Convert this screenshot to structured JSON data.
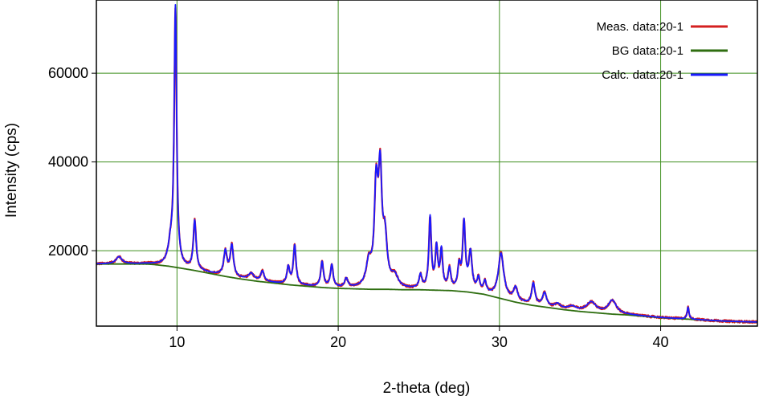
{
  "chart_data": {
    "type": "line",
    "xlabel": "2-theta (deg)",
    "ylabel": "Intensity (cps)",
    "xlim": [
      5,
      46
    ],
    "ylim": [
      3000,
      76500
    ],
    "x_ticks": [
      10,
      20,
      30,
      40
    ],
    "x_tick_labels": [
      "10",
      "20",
      "30",
      "40"
    ],
    "y_ticks": [
      20000,
      40000,
      60000
    ],
    "y_tick_labels": [
      "20000",
      "40000",
      "60000"
    ],
    "grid": true,
    "grid_color": "#3f8f1f",
    "legend_position": "top-right",
    "background": {
      "x": [
        5,
        6,
        7,
        8,
        8.5,
        9,
        9.5,
        10,
        11,
        12,
        13,
        14,
        15,
        16,
        17,
        18,
        19,
        20,
        21,
        22,
        23,
        24,
        25,
        26,
        27,
        28,
        29,
        30,
        31,
        32,
        33,
        34,
        35,
        36,
        37,
        38,
        39,
        40,
        41,
        42,
        43,
        44,
        45,
        46
      ],
      "y": [
        17000,
        17000,
        17000,
        17000,
        16900,
        16700,
        16500,
        16200,
        15600,
        14900,
        14200,
        13600,
        13100,
        12700,
        12300,
        12000,
        11700,
        11500,
        11400,
        11300,
        11300,
        11200,
        11200,
        11100,
        11000,
        10700,
        10200,
        9300,
        8400,
        7700,
        7200,
        6700,
        6300,
        6000,
        5700,
        5500,
        5200,
        4900,
        4700,
        4500,
        4300,
        4100,
        4000,
        3900
      ]
    },
    "peaks": [
      {
        "x": 6.4,
        "height": 1600,
        "width": 0.22
      },
      {
        "x": 9.9,
        "height": 58000,
        "width": 0.09
      },
      {
        "x": 9.6,
        "height": 4000,
        "width": 0.18
      },
      {
        "x": 11.1,
        "height": 11000,
        "width": 0.1
      },
      {
        "x": 13.0,
        "height": 5500,
        "width": 0.12
      },
      {
        "x": 13.4,
        "height": 7000,
        "width": 0.12
      },
      {
        "x": 14.6,
        "height": 1500,
        "width": 0.2
      },
      {
        "x": 15.3,
        "height": 2300,
        "width": 0.12
      },
      {
        "x": 16.9,
        "height": 3800,
        "width": 0.1
      },
      {
        "x": 17.3,
        "height": 8800,
        "width": 0.1
      },
      {
        "x": 19.0,
        "height": 5600,
        "width": 0.1
      },
      {
        "x": 19.6,
        "height": 5000,
        "width": 0.1
      },
      {
        "x": 20.5,
        "height": 2000,
        "width": 0.12
      },
      {
        "x": 21.9,
        "height": 5200,
        "width": 0.2
      },
      {
        "x": 22.35,
        "height": 21000,
        "width": 0.13
      },
      {
        "x": 22.6,
        "height": 24000,
        "width": 0.13
      },
      {
        "x": 22.9,
        "height": 10000,
        "width": 0.16
      },
      {
        "x": 23.5,
        "height": 2500,
        "width": 0.25
      },
      {
        "x": 25.1,
        "height": 3000,
        "width": 0.1
      },
      {
        "x": 25.7,
        "height": 16000,
        "width": 0.09
      },
      {
        "x": 26.1,
        "height": 9000,
        "width": 0.09
      },
      {
        "x": 26.4,
        "height": 8500,
        "width": 0.09
      },
      {
        "x": 26.9,
        "height": 4500,
        "width": 0.1
      },
      {
        "x": 27.5,
        "height": 5000,
        "width": 0.1
      },
      {
        "x": 27.8,
        "height": 15000,
        "width": 0.1
      },
      {
        "x": 28.2,
        "height": 8500,
        "width": 0.12
      },
      {
        "x": 28.7,
        "height": 3000,
        "width": 0.1
      },
      {
        "x": 29.1,
        "height": 2500,
        "width": 0.1
      },
      {
        "x": 30.1,
        "height": 10000,
        "width": 0.2
      },
      {
        "x": 31.0,
        "height": 3000,
        "width": 0.15
      },
      {
        "x": 32.1,
        "height": 4800,
        "width": 0.12
      },
      {
        "x": 32.8,
        "height": 3000,
        "width": 0.15
      },
      {
        "x": 33.6,
        "height": 1000,
        "width": 0.2
      },
      {
        "x": 34.5,
        "height": 800,
        "width": 0.3
      },
      {
        "x": 35.7,
        "height": 2200,
        "width": 0.35
      },
      {
        "x": 37.0,
        "height": 3000,
        "width": 0.3
      },
      {
        "x": 41.7,
        "height": 2700,
        "width": 0.07
      }
    ],
    "series": [
      {
        "name": "Meas. data:20-1",
        "color": "#d42020",
        "source": "measured"
      },
      {
        "name": "BG data:20-1",
        "color": "#2f6e10",
        "source": "background"
      },
      {
        "name": "Calc. data:20-1",
        "color": "#1a1aff",
        "source": "calculated"
      }
    ]
  }
}
